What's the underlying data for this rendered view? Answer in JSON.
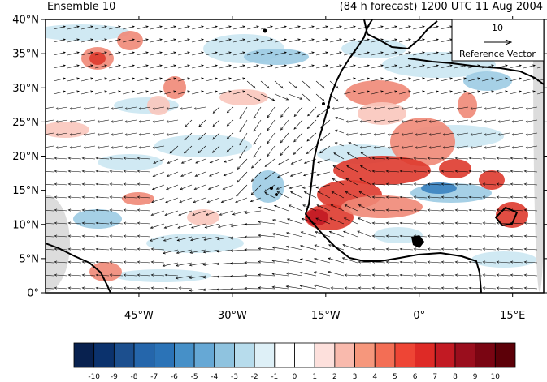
{
  "header": {
    "ensemble_label": "Ensemble 10",
    "forecast_label": "(84 h forecast) 1200 UTC 11 Aug 2004"
  },
  "map": {
    "lon_range": [
      -60,
      20
    ],
    "lat_range": [
      0,
      40
    ],
    "y_ticks": [
      "0°",
      "5°N",
      "10°N",
      "15°N",
      "20°N",
      "25°N",
      "30°N",
      "35°N",
      "40°N"
    ],
    "x_ticks": [
      "45°W",
      "30°W",
      "15°W",
      "0°",
      "15°E"
    ],
    "x_tick_lons": [
      -45,
      -30,
      -15,
      0,
      15
    ]
  },
  "reference_vector": {
    "magnitude": "10",
    "label": "Reference Vector"
  },
  "colorbar": {
    "labels": [
      "-10",
      "-9",
      "-8",
      "-7",
      "-6",
      "-5",
      "-4",
      "-3",
      "-2",
      "-1",
      "0",
      "1",
      "2",
      "3",
      "4",
      "5",
      "6",
      "7",
      "8",
      "9",
      "10"
    ],
    "colors": [
      "#08214f",
      "#0b326d",
      "#1c4f8e",
      "#2566ab",
      "#2b73b7",
      "#4690c8",
      "#66a8d5",
      "#8fc3df",
      "#b7dcec",
      "#def0f7",
      "#ffffff",
      "#ffffff",
      "#fde0dc",
      "#f9baad",
      "#f6977c",
      "#f36e55",
      "#ee4535",
      "#de2a26",
      "#c21a23",
      "#9a0e1d",
      "#7a0512",
      "#5c0008"
    ]
  },
  "anomaly_colors": {
    "pos_light": "#f9c6bd",
    "pos_mid": "#f08877",
    "pos_strong": "#de3a2e",
    "neg_light": "#cbe7f2",
    "neg_mid": "#9ccbe3",
    "neg_strong": "#3a82c0",
    "land_gray": "#d8d8d8"
  }
}
